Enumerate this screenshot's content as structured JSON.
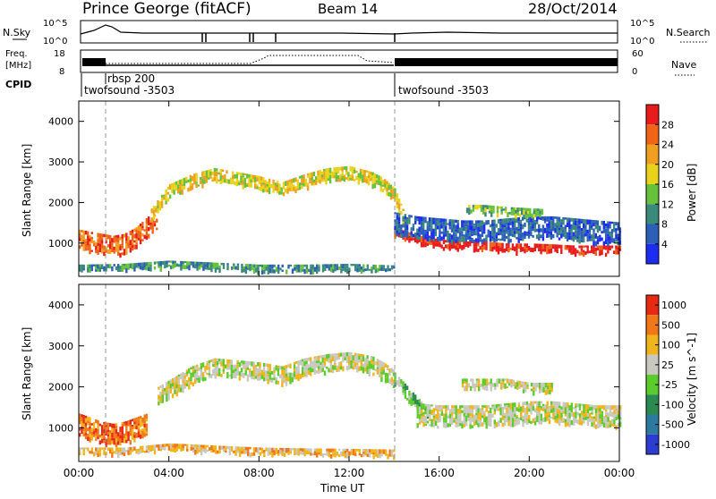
{
  "header": {
    "title": "Prince George (fitACF)",
    "beam": "Beam 14",
    "date": "28/Oct/2014"
  },
  "strip_panels": {
    "sky_label": "N.Sky",
    "sky_ticks": [
      "10^5",
      "10^0"
    ],
    "search_label": "N.Search",
    "freq_label_1": "Freq.",
    "freq_label_2": "[MHz]",
    "freq_ticks": [
      "18",
      "8"
    ],
    "nave_label": "Nave",
    "nave_ticks": [
      "60",
      "0"
    ],
    "cpid_label": "CPID",
    "cpid_entries": [
      {
        "label": "rbsp 200",
        "time_h": 1.1
      },
      {
        "label": "twofsound -3503",
        "time_h": 0.0
      },
      {
        "label": "twofsound -3503",
        "time_h": 14.0
      }
    ]
  },
  "power_panel": {
    "ylabel": "Slant Range [km]",
    "colorbar_label": "Power [dB]",
    "colorbar_ticks": [
      "28",
      "24",
      "20",
      "16",
      "12",
      "8",
      "4"
    ],
    "colors": [
      "#1c2cf0",
      "#2c5fb8",
      "#3a8a7a",
      "#66c23a",
      "#e8d21a",
      "#f0a020",
      "#f06418",
      "#e81c1c"
    ]
  },
  "velocity_panel": {
    "ylabel": "Slant Range [km]",
    "colorbar_label": "Velocity [m s^-1]",
    "colorbar_ticks": [
      "1000",
      "500",
      "100",
      "25",
      "-25",
      "-100",
      "-500",
      "-1000"
    ],
    "colors": [
      "#2c3cd0",
      "#2c7aa0",
      "#2a8a50",
      "#5ccc2c",
      "#c8c8c0",
      "#f0b41c",
      "#f07818",
      "#e82a14"
    ]
  },
  "x_axis": {
    "label": "Time UT",
    "ticks": [
      "00:00",
      "04:00",
      "08:00",
      "12:00",
      "16:00",
      "20:00",
      "00:00"
    ]
  },
  "chart_data": {
    "type": "heatmap",
    "x_range_hours": [
      0,
      24
    ],
    "y_range_km": [
      180,
      4500
    ],
    "y_ticks_km": [
      1000,
      2000,
      3000,
      4000
    ],
    "cpid_change_times_h": [
      1.1,
      14.0
    ],
    "power_bands": [
      {
        "t": [
          0,
          0.5,
          1,
          1.5,
          2,
          2.5,
          3,
          3.5
        ],
        "r": [
          1100,
          1050,
          1000,
          950,
          1000,
          1150,
          1400,
          1600
        ],
        "dr": 230,
        "level": 6
      },
      {
        "t": [
          3.2,
          4,
          5,
          6,
          7,
          8,
          9,
          10,
          11,
          12,
          13,
          13.5,
          14,
          14.5
        ],
        "r": [
          1700,
          2300,
          2550,
          2700,
          2600,
          2500,
          2350,
          2550,
          2700,
          2750,
          2600,
          2450,
          2200,
          1500
        ],
        "dr": 150,
        "level": 4
      },
      {
        "t": [
          14,
          15,
          16,
          17,
          18,
          19,
          20,
          21,
          22,
          23,
          24
        ],
        "r": [
          1300,
          1100,
          1000,
          950,
          950,
          900,
          900,
          880,
          850,
          850,
          850
        ],
        "dr": 90,
        "level": 7
      },
      {
        "t": [
          14,
          15,
          16,
          17,
          18,
          19,
          20,
          21,
          22,
          23,
          24
        ],
        "r": [
          1500,
          1400,
          1350,
          1300,
          1300,
          1350,
          1400,
          1400,
          1350,
          1300,
          1250
        ],
        "dr": 260,
        "level": 1
      },
      {
        "t": [
          17.2,
          18,
          19,
          20.6
        ],
        "r": [
          1850,
          1850,
          1800,
          1750
        ],
        "dr": 90,
        "level": 3
      },
      {
        "t": [
          0,
          2,
          4,
          6,
          8,
          10,
          12,
          14
        ],
        "r": [
          400,
          420,
          500,
          450,
          400,
          400,
          420,
          380
        ],
        "dr": 70,
        "level": 2
      }
    ],
    "velocity_bands": [
      {
        "t": [
          0,
          0.5,
          1,
          1.5,
          2,
          2.5,
          3
        ],
        "r": [
          1100,
          1000,
          900,
          850,
          900,
          1000,
          1100
        ],
        "dr": 250,
        "level": 6
      },
      {
        "t": [
          3.5,
          5,
          6,
          7,
          8,
          9,
          10,
          11,
          12,
          13,
          13.5,
          14
        ],
        "r": [
          1800,
          2300,
          2500,
          2450,
          2400,
          2300,
          2500,
          2600,
          2650,
          2550,
          2400,
          2200
        ],
        "dr": 200,
        "level": 4
      },
      {
        "t": [
          14,
          14.5,
          15,
          15.5
        ],
        "r": [
          2200,
          1900,
          1600,
          1300
        ],
        "dr": 150,
        "level": 3
      },
      {
        "t": [
          15,
          16,
          17,
          18,
          19,
          20,
          21,
          22,
          23,
          24
        ],
        "r": [
          1350,
          1300,
          1300,
          1300,
          1350,
          1400,
          1400,
          1350,
          1300,
          1300
        ],
        "dr": 250,
        "level": 4
      },
      {
        "t": [
          17,
          18,
          19,
          20,
          21
        ],
        "r": [
          2100,
          2100,
          2100,
          2000,
          2000
        ],
        "dr": 100,
        "level": 4
      },
      {
        "t": [
          0,
          2,
          4,
          6,
          8,
          10,
          12,
          14
        ],
        "r": [
          450,
          450,
          550,
          500,
          450,
          430,
          420,
          400
        ],
        "dr": 70,
        "level": 5
      }
    ]
  }
}
